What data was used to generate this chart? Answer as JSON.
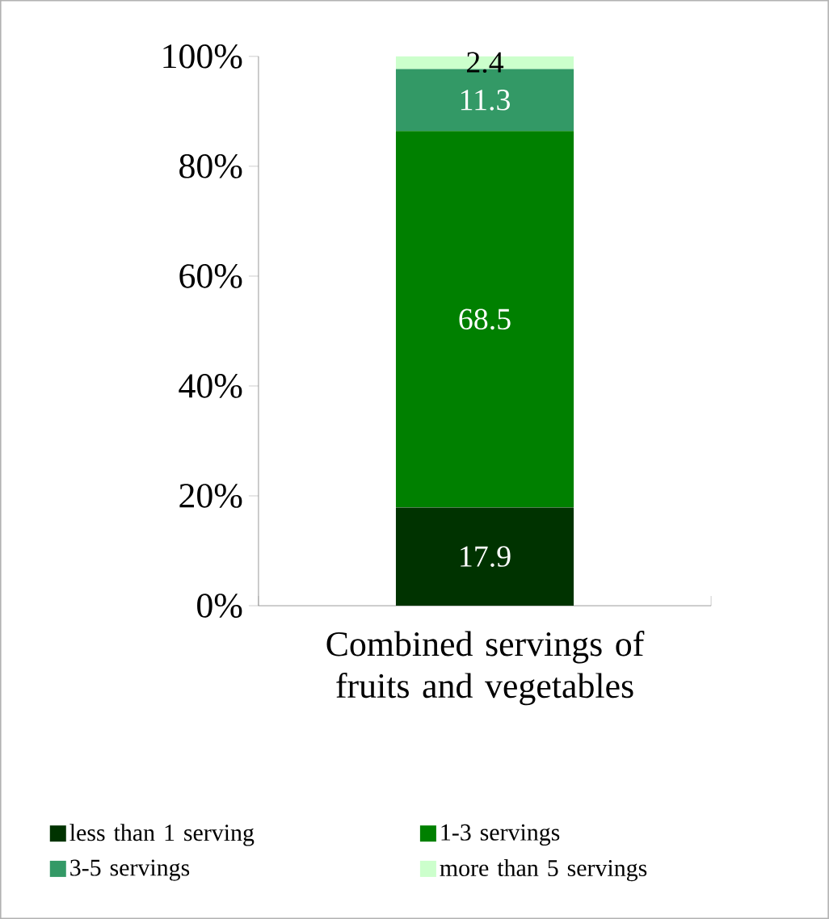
{
  "chart_data": {
    "type": "bar",
    "stacked": true,
    "data_labels": true,
    "legend": "bottom",
    "categories": [
      "Combined servings of fruits and vegetables"
    ],
    "ylim": [
      0,
      100
    ],
    "yticks": [
      {
        "value": 0,
        "label": "0%"
      },
      {
        "value": 20,
        "label": "20%"
      },
      {
        "value": 40,
        "label": "40%"
      },
      {
        "value": 60,
        "label": "60%"
      },
      {
        "value": 80,
        "label": "80%"
      },
      {
        "value": 100,
        "label": "100%"
      }
    ],
    "series": [
      {
        "name": "less than 1 serving",
        "color": "#003300",
        "values": [
          17.9
        ]
      },
      {
        "name": "1-3 servings",
        "color": "#008000",
        "values": [
          68.5
        ]
      },
      {
        "name": "3-5 servings",
        "color": "#339966",
        "values": [
          11.3
        ]
      },
      {
        "name": "more than 5 servings",
        "color": "#ccffcc",
        "values": [
          2.4
        ]
      }
    ]
  }
}
